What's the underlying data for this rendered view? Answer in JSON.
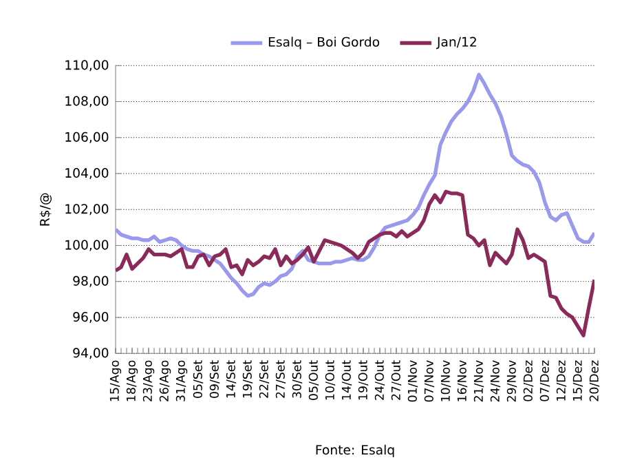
{
  "chart_data": {
    "type": "line",
    "ylabel": "R$/@",
    "annotations": [
      "Fonte: Esalq"
    ],
    "categories": [
      "15/Ago",
      null,
      null,
      "18/Ago",
      null,
      null,
      "23/Ago",
      null,
      null,
      "26/Ago",
      null,
      null,
      "31/Ago",
      null,
      null,
      "05/Set",
      null,
      null,
      "09/Set",
      null,
      null,
      "14/Set",
      null,
      null,
      "19/Set",
      null,
      null,
      "22/Set",
      null,
      null,
      "27/Set",
      null,
      null,
      "30/Set",
      null,
      null,
      "05/Out",
      null,
      null,
      "10/Out",
      null,
      null,
      "14/Out",
      null,
      null,
      "19/Out",
      null,
      null,
      "24/Out",
      null,
      null,
      "27/Out",
      null,
      null,
      "01/Nov",
      null,
      null,
      "07/Nov",
      null,
      null,
      "10/Nov",
      null,
      null,
      "16/Nov",
      null,
      null,
      "21/Nov",
      null,
      null,
      "24/Nov",
      null,
      null,
      "29/Nov",
      null,
      null,
      "02/Dez",
      null,
      null,
      "07/Dez",
      null,
      null,
      "12/Dez",
      null,
      null,
      "15/Dez",
      null,
      null,
      "20/Dez"
    ],
    "series": [
      {
        "name": "Esalq – Boi Gordo",
        "color": "#9999ee",
        "values": [
          100.9,
          100.6,
          100.5,
          100.4,
          100.4,
          100.3,
          100.3,
          100.5,
          100.2,
          100.3,
          100.4,
          100.3,
          100.0,
          99.8,
          99.7,
          99.7,
          99.5,
          99.4,
          99.2,
          99.0,
          98.6,
          98.2,
          97.9,
          97.5,
          97.2,
          97.3,
          97.7,
          97.9,
          97.8,
          98.0,
          98.3,
          98.4,
          98.7,
          99.4,
          99.7,
          99.2,
          99.1,
          99.0,
          99.0,
          99.0,
          99.1,
          99.1,
          99.2,
          99.3,
          99.2,
          99.2,
          99.4,
          99.9,
          100.6,
          101.0,
          101.1,
          101.2,
          101.3,
          101.4,
          101.7,
          102.1,
          102.8,
          103.4,
          103.9,
          105.6,
          106.3,
          106.9,
          107.3,
          107.6,
          108.0,
          108.6,
          109.5,
          109.0,
          108.4,
          107.9,
          107.2,
          106.2,
          105.0,
          104.7,
          104.5,
          104.4,
          104.1,
          103.5,
          102.4,
          101.6,
          101.4,
          101.7,
          101.8,
          101.1,
          100.4,
          100.2,
          100.2,
          100.7
        ]
      },
      {
        "name": "Jan/12",
        "color": "#8b2a5a",
        "values": [
          98.6,
          98.8,
          99.5,
          98.7,
          99.0,
          99.3,
          99.8,
          99.5,
          99.5,
          99.5,
          99.4,
          99.6,
          99.8,
          98.8,
          98.8,
          99.4,
          99.5,
          98.9,
          99.4,
          99.5,
          99.8,
          98.8,
          98.9,
          98.4,
          99.2,
          98.9,
          99.1,
          99.4,
          99.3,
          99.8,
          98.9,
          99.4,
          99.0,
          99.2,
          99.5,
          99.9,
          99.1,
          99.7,
          100.3,
          100.2,
          100.1,
          100.0,
          99.8,
          99.6,
          99.3,
          99.6,
          100.2,
          100.4,
          100.6,
          100.7,
          100.7,
          100.5,
          100.8,
          100.5,
          100.7,
          100.9,
          101.4,
          102.3,
          102.8,
          102.4,
          103.0,
          102.9,
          102.9,
          102.8,
          100.6,
          100.4,
          100.0,
          100.3,
          98.9,
          99.6,
          99.3,
          99.0,
          99.5,
          100.9,
          100.3,
          99.3,
          99.5,
          99.3,
          99.1,
          97.2,
          97.1,
          96.5,
          96.2,
          96.0,
          95.5,
          95.0,
          96.6,
          98.1
        ]
      }
    ],
    "ylim": [
      94,
      110
    ],
    "yticks": [
      {
        "value": 94,
        "label": "94,00"
      },
      {
        "value": 96,
        "label": "96,00"
      },
      {
        "value": 98,
        "label": "98,00"
      },
      {
        "value": 100,
        "label": "100,00"
      },
      {
        "value": 102,
        "label": "102,00"
      },
      {
        "value": 104,
        "label": "104,00"
      },
      {
        "value": 106,
        "label": "106,00"
      },
      {
        "value": 108,
        "label": "108,00"
      },
      {
        "value": 110,
        "label": "110,00"
      }
    ],
    "grid": "y",
    "legend": "top",
    "marker": "none",
    "line_style": "solid"
  }
}
